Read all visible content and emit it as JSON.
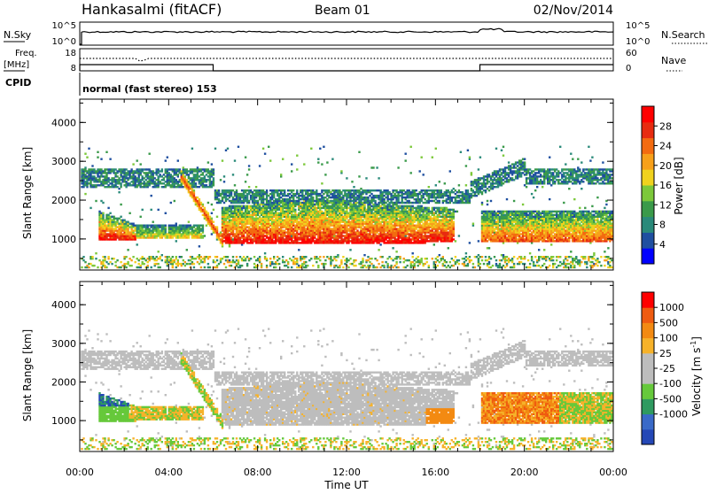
{
  "header": {
    "station": "Hankasalmi (fitACF)",
    "beam": "Beam 01",
    "date": "02/Nov/2014"
  },
  "ancillary": {
    "nsky_label": "N.Sky",
    "nsearch_label": "N.Search",
    "freq_label_top": "Freq.",
    "freq_label_bottom": "[MHz]",
    "nave_label": "Nave",
    "cpid_label": "CPID",
    "nsky_ticks": [
      "10^5",
      "10^0"
    ],
    "nsearch_ticks": [
      "10^5",
      "10^0"
    ],
    "freq_ticks": [
      "18",
      "8"
    ],
    "nave_ticks": [
      "60",
      "0"
    ],
    "mode_text": "normal (fast stereo) 153"
  },
  "chart_data": [
    {
      "type": "heatmap",
      "name": "power",
      "ylabel": "Slant Range [km]",
      "xlabel": "Time UT",
      "yticks": [
        "1000",
        "2000",
        "3000",
        "4000"
      ],
      "xticks": [
        "00:00",
        "04:00",
        "08:00",
        "12:00",
        "16:00",
        "20:00",
        "00:00"
      ],
      "ylim": [
        200,
        4600
      ],
      "colorbar": {
        "label": "Power [dB]",
        "ticks": [
          "4",
          "8",
          "12",
          "16",
          "20",
          "24",
          "28"
        ],
        "colors": [
          "#0000ff",
          "#1f4fa0",
          "#2a8a7a",
          "#3a9a4a",
          "#7cc83a",
          "#f0d21e",
          "#f7a01a",
          "#f36b10",
          "#e72b10",
          "#ff0000"
        ]
      }
    },
    {
      "type": "heatmap",
      "name": "velocity",
      "ylabel": "Slant Range [km]",
      "xlabel": "Time UT",
      "yticks": [
        "1000",
        "2000",
        "3000",
        "4000"
      ],
      "xticks": [
        "00:00",
        "04:00",
        "08:00",
        "12:00",
        "16:00",
        "20:00",
        "00:00"
      ],
      "ylim": [
        200,
        4600
      ],
      "colorbar": {
        "label": "Velocity [m s",
        "label_exp": "-1",
        "label_end": "]",
        "ticks": [
          "1000",
          "500",
          "100",
          "25",
          "-25",
          "-100",
          "-500",
          "-1000"
        ],
        "colors": [
          "#2447b6",
          "#3a6ac8",
          "#2f9a60",
          "#66c93b",
          "#bdbdbd",
          "#bdbdbd",
          "#f6b22a",
          "#f38a12",
          "#ef5b10",
          "#ff0000"
        ]
      }
    }
  ],
  "xaxis_label": "Time UT",
  "xticks": [
    "00:00",
    "04:00",
    "08:00",
    "12:00",
    "16:00",
    "20:00",
    "00:00"
  ]
}
